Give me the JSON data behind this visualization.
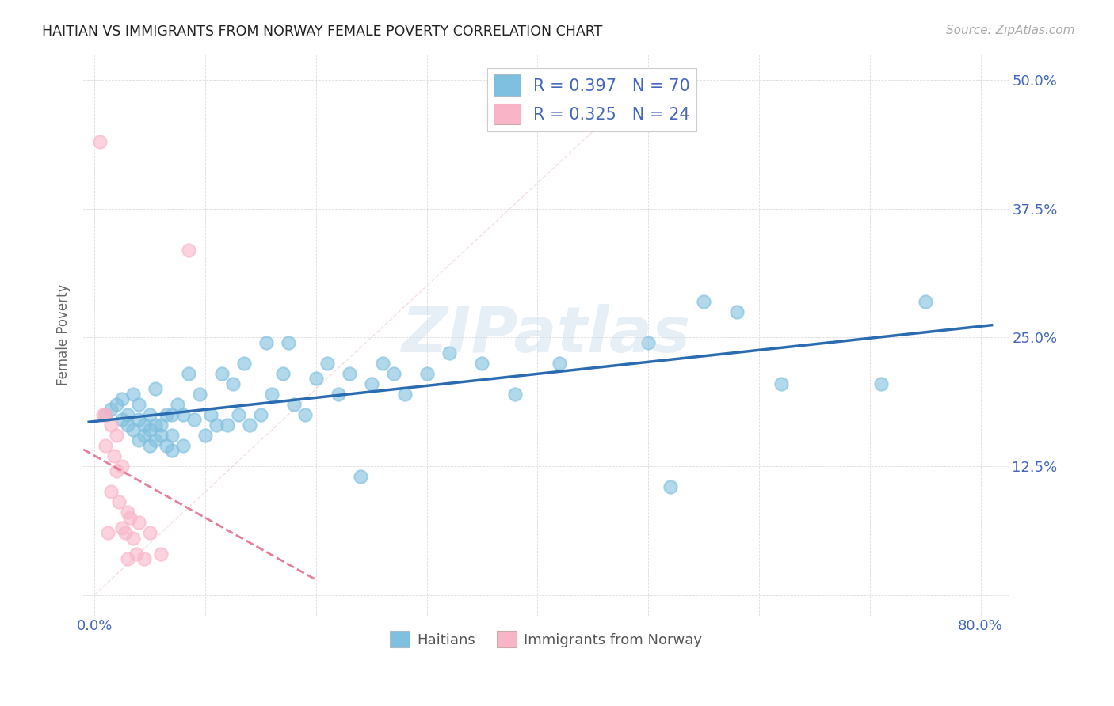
{
  "title": "HAITIAN VS IMMIGRANTS FROM NORWAY FEMALE POVERTY CORRELATION CHART",
  "source": "Source: ZipAtlas.com",
  "ylabel": "Female Poverty",
  "R1": 0.397,
  "N1": 70,
  "R2": 0.325,
  "N2": 24,
  "blue_color": "#7fbfdf",
  "pink_color": "#f9b4c8",
  "blue_line_color": "#2b6cb0",
  "pink_line_color": "#e06080",
  "title_color": "#222222",
  "axis_color": "#4466bb",
  "watermark": "ZIPatlas",
  "xlim": [
    -0.01,
    0.825
  ],
  "ylim": [
    -0.02,
    0.525
  ],
  "x_ticks": [
    0.0,
    0.1,
    0.2,
    0.3,
    0.4,
    0.5,
    0.6,
    0.7,
    0.8
  ],
  "x_labels": [
    "0.0%",
    "",
    "",
    "",
    "",
    "",
    "",
    "",
    "80.0%"
  ],
  "y_ticks": [
    0.0,
    0.125,
    0.25,
    0.375,
    0.5
  ],
  "y_labels_right": [
    "",
    "12.5%",
    "25.0%",
    "37.5%",
    "50.0%"
  ],
  "legend_label1": "Haitians",
  "legend_label2": "Immigrants from Norway",
  "haitians_x": [
    0.01,
    0.015,
    0.02,
    0.025,
    0.025,
    0.03,
    0.03,
    0.035,
    0.035,
    0.04,
    0.04,
    0.04,
    0.045,
    0.045,
    0.05,
    0.05,
    0.05,
    0.055,
    0.055,
    0.055,
    0.06,
    0.06,
    0.065,
    0.065,
    0.07,
    0.07,
    0.07,
    0.075,
    0.08,
    0.08,
    0.085,
    0.09,
    0.095,
    0.1,
    0.105,
    0.11,
    0.115,
    0.12,
    0.125,
    0.13,
    0.135,
    0.14,
    0.15,
    0.155,
    0.16,
    0.17,
    0.175,
    0.18,
    0.19,
    0.2,
    0.21,
    0.22,
    0.23,
    0.24,
    0.25,
    0.26,
    0.27,
    0.28,
    0.3,
    0.32,
    0.35,
    0.38,
    0.42,
    0.5,
    0.52,
    0.55,
    0.58,
    0.62,
    0.71,
    0.75
  ],
  "haitians_y": [
    0.175,
    0.18,
    0.185,
    0.17,
    0.19,
    0.165,
    0.175,
    0.16,
    0.195,
    0.15,
    0.17,
    0.185,
    0.155,
    0.165,
    0.145,
    0.16,
    0.175,
    0.15,
    0.165,
    0.2,
    0.155,
    0.165,
    0.145,
    0.175,
    0.14,
    0.155,
    0.175,
    0.185,
    0.145,
    0.175,
    0.215,
    0.17,
    0.195,
    0.155,
    0.175,
    0.165,
    0.215,
    0.165,
    0.205,
    0.175,
    0.225,
    0.165,
    0.175,
    0.245,
    0.195,
    0.215,
    0.245,
    0.185,
    0.175,
    0.21,
    0.225,
    0.195,
    0.215,
    0.115,
    0.205,
    0.225,
    0.215,
    0.195,
    0.215,
    0.235,
    0.225,
    0.195,
    0.225,
    0.245,
    0.105,
    0.285,
    0.275,
    0.205,
    0.205,
    0.285
  ],
  "norway_x": [
    0.005,
    0.008,
    0.01,
    0.01,
    0.012,
    0.015,
    0.015,
    0.018,
    0.02,
    0.02,
    0.022,
    0.025,
    0.025,
    0.028,
    0.03,
    0.03,
    0.032,
    0.035,
    0.038,
    0.04,
    0.045,
    0.05,
    0.06,
    0.085
  ],
  "norway_y": [
    0.44,
    0.175,
    0.145,
    0.175,
    0.06,
    0.165,
    0.1,
    0.135,
    0.12,
    0.155,
    0.09,
    0.065,
    0.125,
    0.06,
    0.035,
    0.08,
    0.075,
    0.055,
    0.04,
    0.07,
    0.035,
    0.06,
    0.04,
    0.335
  ]
}
